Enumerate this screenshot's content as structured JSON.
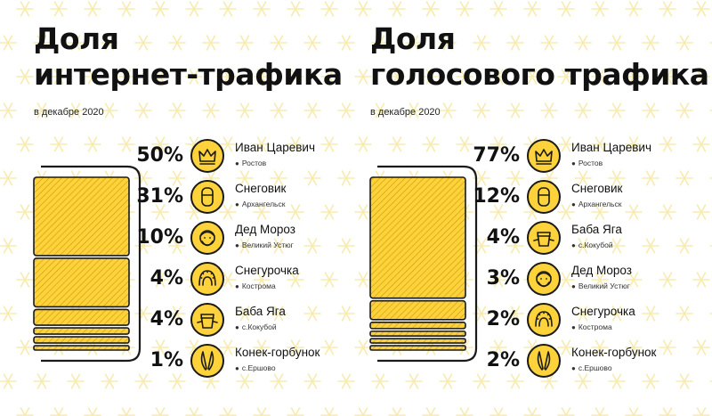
{
  "colors": {
    "accent": "#fdd23b",
    "ink": "#1a1a1a",
    "pattern": "#f7ebb0",
    "background": "#ffffff"
  },
  "panels": [
    {
      "title_line1": "Доля",
      "title_line2": "интернет-трафика",
      "subtitle": "в декабре 2020"
    },
    {
      "title_line1": "Доля",
      "title_line2": "голосового трафика",
      "subtitle": "в декабре 2020"
    }
  ],
  "chart_data": [
    {
      "type": "bar",
      "title": "Доля интернет-трафика",
      "subtitle": "в декабре 2020",
      "unit": "%",
      "categories": [
        "Иван Царевич",
        "Снеговик",
        "Дед Мороз",
        "Снегурочка",
        "Баба Яга",
        "Конек-горбунок"
      ],
      "labels": [
        "50%",
        "31%",
        "10%",
        "4%",
        "4%",
        "1%"
      ],
      "values": [
        50,
        31,
        10,
        4,
        4,
        1
      ],
      "cities": [
        "Ростов",
        "Архангельск",
        "Великий Устюг",
        "Кострома",
        "с.Кокубой",
        "с.Ершово"
      ],
      "icons": [
        "crown-icon",
        "snowman-icon",
        "ded-moroz-icon",
        "snegurochka-icon",
        "baba-yaga-icon",
        "konek-gorbunok-icon"
      ]
    },
    {
      "type": "bar",
      "title": "Доля голосового трафика",
      "subtitle": "в декабре 2020",
      "unit": "%",
      "categories": [
        "Иван Царевич",
        "Снеговик",
        "Баба Яга",
        "Дед Мороз",
        "Снегурочка",
        "Конек-горбунок"
      ],
      "labels": [
        "77%",
        "12%",
        "4%",
        "3%",
        "2%",
        "2%"
      ],
      "values": [
        77,
        12,
        4,
        3,
        2,
        2
      ],
      "cities": [
        "Ростов",
        "Архангельск",
        "с.Кокубой",
        "Великий Устюг",
        "Кострома",
        "с.Ершово"
      ],
      "icons": [
        "crown-icon",
        "snowman-icon",
        "baba-yaga-icon",
        "ded-moroz-icon",
        "snegurochka-icon",
        "konek-gorbunok-icon"
      ]
    }
  ]
}
